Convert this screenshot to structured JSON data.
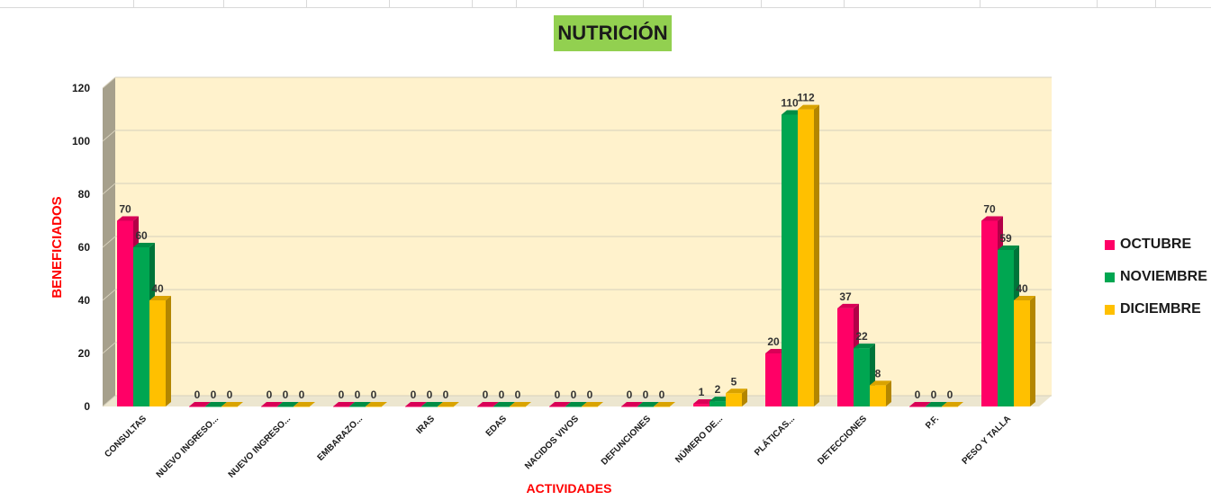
{
  "chart_data": {
    "type": "bar",
    "title": "NUTRICIÓN",
    "xlabel": "ACTIVIDADES",
    "ylabel": "BENEFICIADOS",
    "ylim": [
      0,
      120
    ],
    "yticks": [
      "0",
      "20",
      "40",
      "60",
      "80",
      "100",
      "120"
    ],
    "categories": [
      "CONSULTAS",
      "NUEVO INGRESO...",
      "NUEVO INGRESO...",
      "EMBARAZO...",
      "IRAS",
      "EDAS",
      "NACIDOS VIVOS",
      "DEFUNCIONES",
      "NÚMERO DE...",
      "PLÁTICAS...",
      "DETECCIONES",
      "P.F.",
      "PESO Y TALLA"
    ],
    "series": [
      {
        "name": "OCTUBRE",
        "color": "#ff0066",
        "values": [
          70,
          0,
          0,
          0,
          0,
          0,
          0,
          0,
          1,
          20,
          37,
          0,
          70
        ]
      },
      {
        "name": "NOVIEMBRE",
        "color": "#00a651",
        "values": [
          60,
          0,
          0,
          0,
          0,
          0,
          0,
          0,
          2,
          110,
          22,
          0,
          59
        ]
      },
      {
        "name": "DICIEMBRE",
        "color": "#ffc000",
        "values": [
          40,
          0,
          0,
          0,
          0,
          0,
          0,
          0,
          5,
          112,
          8,
          0,
          40
        ]
      }
    ],
    "grid": true,
    "legend_position": "right",
    "background_color": "#fff2cc"
  }
}
